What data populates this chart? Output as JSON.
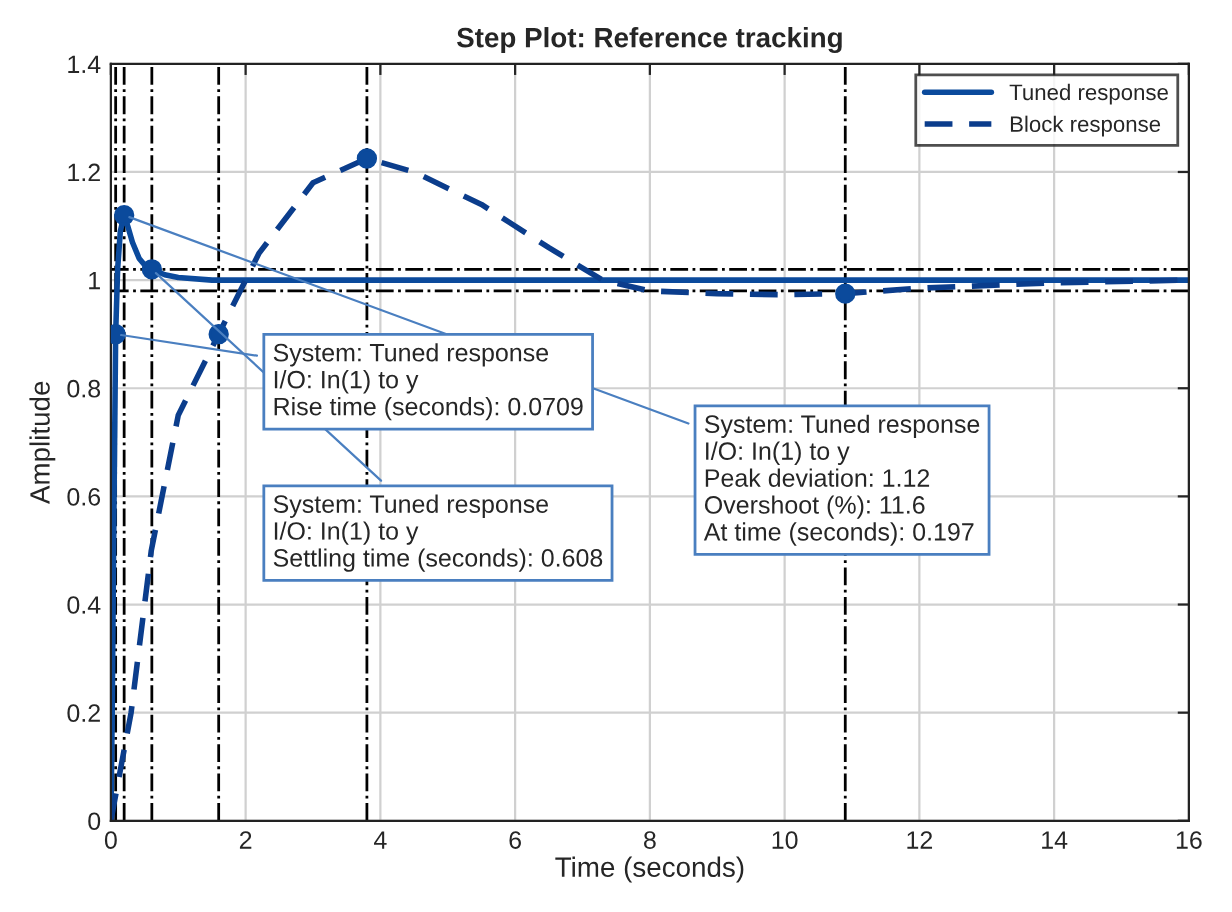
{
  "chart_data": {
    "type": "line",
    "title": "Step Plot: Reference tracking",
    "xlabel": "Time (seconds)",
    "ylabel": "Amplitude",
    "xlim": [
      0,
      16
    ],
    "xticks": [
      0,
      2,
      4,
      6,
      8,
      10,
      12,
      14,
      16
    ],
    "ylim": [
      0,
      1.4
    ],
    "yticks": [
      0,
      0.2,
      0.4,
      0.6,
      0.8,
      1,
      1.2,
      1.4
    ],
    "grid": true,
    "legend": "top right",
    "series": [
      {
        "name": "Tuned response",
        "color": "#0b4a9c",
        "line_style": "solid",
        "marker": "none",
        "x": [
          0,
          0.02,
          0.04,
          0.0709,
          0.1,
          0.14,
          0.197,
          0.25,
          0.32,
          0.42,
          0.52,
          0.608,
          0.8,
          1.0,
          1.5,
          2,
          4,
          8,
          12,
          16
        ],
        "values": [
          0,
          0.2,
          0.5,
          0.9,
          1.02,
          1.09,
          1.12,
          1.1,
          1.07,
          1.04,
          1.025,
          1.02,
          1.01,
          1.005,
          1.0,
          1.0,
          1.0,
          1.0,
          1.0,
          1.0
        ]
      },
      {
        "name": "Block response",
        "color": "#0b3d8c",
        "line_style": "dashed",
        "marker": "none",
        "x": [
          0,
          0.3,
          0.6,
          1.0,
          1.6,
          2.2,
          3.0,
          3.8,
          4.5,
          5.5,
          6.5,
          7.3,
          8,
          9,
          10,
          10.9,
          12,
          14,
          16
        ],
        "values": [
          0,
          0.2,
          0.5,
          0.75,
          0.9,
          1.05,
          1.18,
          1.225,
          1.2,
          1.14,
          1.06,
          1.0,
          0.98,
          0.975,
          0.973,
          0.975,
          0.985,
          0.995,
          1.0
        ]
      },
      {
        "type": "scatter",
        "color": "#0b4a9c",
        "marker": "circle",
        "x": [
          0.0709,
          0.197,
          0.608,
          1.6,
          3.8,
          10.9
        ],
        "values": [
          0.9,
          1.12,
          1.02,
          0.9,
          1.225,
          0.975
        ]
      }
    ],
    "ref_lines": [
      {
        "axis": "y",
        "value": 1.02,
        "color": "#000000",
        "line_style": "dashdot"
      },
      {
        "axis": "y",
        "value": 0.98,
        "color": "#000000",
        "line_style": "dashdot"
      },
      {
        "axis": "x",
        "value": 0.0709,
        "color": "#000000",
        "line_style": "dashdot"
      },
      {
        "axis": "x",
        "value": 0.197,
        "color": "#000000",
        "line_style": "dashdot"
      },
      {
        "axis": "x",
        "value": 0.608,
        "color": "#000000",
        "line_style": "dashdot"
      },
      {
        "axis": "x",
        "value": 1.6,
        "color": "#000000",
        "line_style": "dashdot"
      },
      {
        "axis": "x",
        "value": 3.8,
        "color": "#000000",
        "line_style": "dashdot"
      },
      {
        "axis": "x",
        "value": 10.9,
        "color": "#000000",
        "line_style": "dashdot"
      }
    ],
    "annotations": [
      {
        "text": "System: Tuned response\nI/O: In(1) to y\nPeak deviation: 1.12\nOvershoot (%): 11.6\nAt time (seconds): 0.197",
        "x": 0.197,
        "y": 1.12
      },
      {
        "text": "System: Tuned response\nI/O: In(1) to y\nSettling time (seconds): 0.608",
        "x": 0.608,
        "y": 1.02
      },
      {
        "text": "System: Tuned response\nI/O: In(1) to y\nRise time (seconds): 0.0709",
        "x": 0.0709,
        "y": 0.9
      }
    ]
  }
}
